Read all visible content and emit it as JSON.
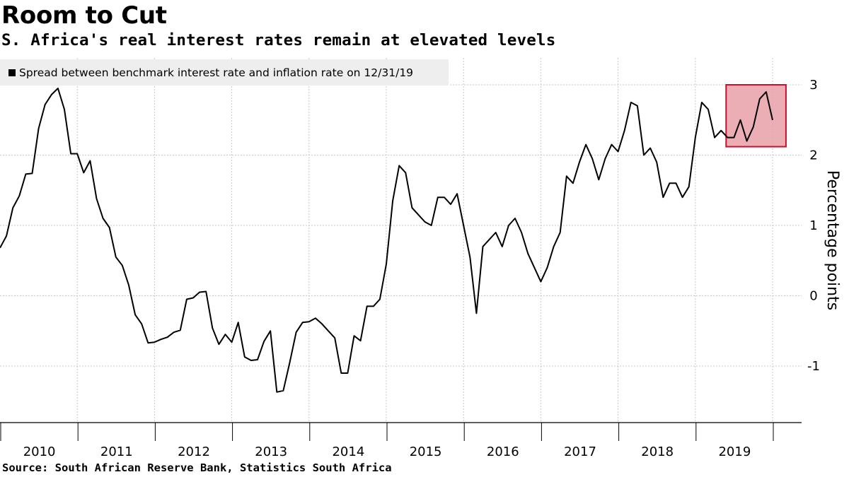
{
  "header": {
    "title": "Room to Cut",
    "subtitle": "S. Africa's real interest rates remain at elevated levels"
  },
  "legend": {
    "label": "Spread between benchmark interest rate and inflation rate on 12/31/19",
    "color": "#000000"
  },
  "footer": {
    "source": "Source: South African Reserve Bank, Statistics South Africa"
  },
  "colors": {
    "line": "#000000",
    "highlight_fill": "#e8a0a8",
    "highlight_stroke": "#c8102e",
    "grid": "#c8c8c8",
    "legend_bg": "#eeeeee"
  },
  "chart_data": {
    "type": "line",
    "title": "Room to Cut",
    "subtitle": "S. Africa's real interest rates remain at elevated levels",
    "ylabel": "Percentage points",
    "xlabel": "",
    "ylim": [
      -1.8,
      3.4
    ],
    "yticks": [
      3,
      2,
      1,
      0,
      -1
    ],
    "ytick_labels": [
      "3",
      "2",
      "1",
      "0",
      "-1"
    ],
    "x_categories": [
      "2010",
      "2011",
      "2012",
      "2013",
      "2014",
      "2015",
      "2016",
      "2017",
      "2018",
      "2019"
    ],
    "grid": true,
    "legend_position": "top-left",
    "series": [
      {
        "name": "Spread between benchmark interest rate and inflation rate on 12/31/19",
        "x_start": "2010-01",
        "frequency": "monthly",
        "values": [
          0.68,
          0.85,
          1.25,
          1.42,
          1.73,
          1.74,
          2.38,
          2.72,
          2.86,
          2.95,
          2.65,
          2.02,
          2.02,
          1.75,
          1.92,
          1.38,
          1.1,
          0.97,
          0.55,
          0.43,
          0.15,
          -0.27,
          -0.4,
          -0.67,
          -0.66,
          -0.62,
          -0.59,
          -0.52,
          -0.49,
          -0.05,
          -0.03,
          0.05,
          0.06,
          -0.46,
          -0.69,
          -0.55,
          -0.66,
          -0.38,
          -0.87,
          -0.92,
          -0.91,
          -0.65,
          -0.5,
          -1.37,
          -1.35,
          -0.95,
          -0.52,
          -0.38,
          -0.37,
          -0.32,
          -0.4,
          -0.5,
          -0.6,
          -1.1,
          -1.1,
          -0.57,
          -0.64,
          -0.15,
          -0.15,
          -0.05,
          0.45,
          1.35,
          1.85,
          1.75,
          1.25,
          1.15,
          1.05,
          1.0,
          1.4,
          1.4,
          1.3,
          1.45,
          1.0,
          0.55,
          -0.25,
          0.7,
          0.8,
          0.9,
          0.7,
          1.0,
          1.1,
          0.9,
          0.6,
          0.4,
          0.2,
          0.4,
          0.7,
          0.9,
          1.7,
          1.6,
          1.9,
          2.15,
          1.95,
          1.65,
          1.95,
          2.15,
          2.05,
          2.35,
          2.75,
          2.7,
          2.0,
          2.1,
          1.9,
          1.4,
          1.6,
          1.6,
          1.4,
          1.55,
          2.25,
          2.75,
          2.65,
          2.25,
          2.35,
          2.25,
          2.25,
          2.5,
          2.2,
          2.4,
          2.8,
          2.9,
          2.5
        ]
      }
    ],
    "highlight": {
      "x_from": "2019-06",
      "x_to": "2019-12",
      "y_from": 2.12,
      "y_to": 3.0
    }
  }
}
